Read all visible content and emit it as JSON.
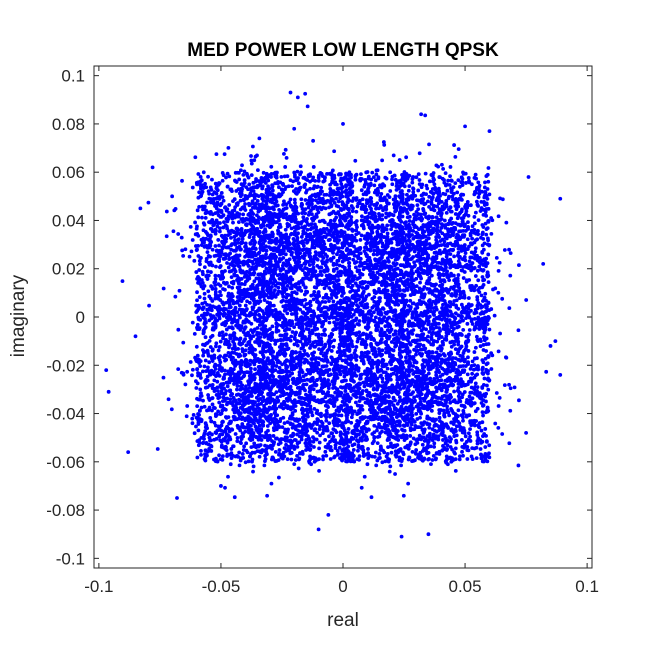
{
  "chart_data": {
    "type": "scatter",
    "title": "MED POWER LOW LENGTH QPSK",
    "xlabel": "real",
    "ylabel": "imaginary",
    "xlim": [
      -0.102,
      0.102
    ],
    "ylim": [
      -0.104,
      0.104
    ],
    "xticks": [
      -0.1,
      -0.05,
      0,
      0.05,
      0.1
    ],
    "xtick_labels": [
      "-0.1",
      "-0.05",
      "0",
      "0.05",
      "0.1"
    ],
    "yticks": [
      0.1,
      0.08,
      0.06,
      0.04,
      0.02,
      0,
      -0.02,
      -0.04,
      -0.06,
      -0.08,
      -0.1
    ],
    "ytick_labels": [
      "0.1",
      "0.08",
      "0.06",
      "0.04",
      "0.02",
      "0",
      "-0.02",
      "-0.04",
      "-0.06",
      "-0.08",
      "-0.1"
    ],
    "grid": false,
    "marker_color": "#0000ff",
    "cluster_centers": [
      [
        -0.028,
        0.028
      ],
      [
        0.028,
        0.028
      ],
      [
        -0.028,
        -0.028
      ],
      [
        0.028,
        -0.028
      ]
    ],
    "points": [
      [
        -0.0215,
        0.093
      ],
      [
        -0.0185,
        0.091
      ],
      [
        -0.0155,
        0.0925
      ],
      [
        0.032,
        0.084
      ],
      [
        0.05,
        0.079
      ],
      [
        0.06,
        0.077
      ],
      [
        -0.097,
        -0.022
      ],
      [
        -0.096,
        -0.031
      ],
      [
        -0.088,
        -0.056
      ],
      [
        -0.085,
        -0.008
      ],
      [
        -0.083,
        0.045
      ],
      [
        -0.078,
        0.062
      ],
      [
        0.089,
        0.049
      ],
      [
        0.089,
        -0.024
      ],
      [
        0.087,
        -0.01
      ],
      [
        0.085,
        -0.012
      ],
      [
        0.082,
        0.022
      ],
      [
        0.076,
        0.058
      ],
      [
        0.024,
        -0.091
      ],
      [
        0.035,
        -0.09
      ],
      [
        -0.01,
        -0.088
      ],
      [
        -0.068,
        -0.075
      ],
      [
        -0.05,
        -0.07
      ],
      [
        0.0,
        0.08
      ],
      [
        -0.02,
        0.078
      ],
      [
        -0.006,
        -0.082
      ],
      [
        0.075,
        -0.048
      ],
      [
        -0.07,
        0.05
      ]
    ]
  }
}
